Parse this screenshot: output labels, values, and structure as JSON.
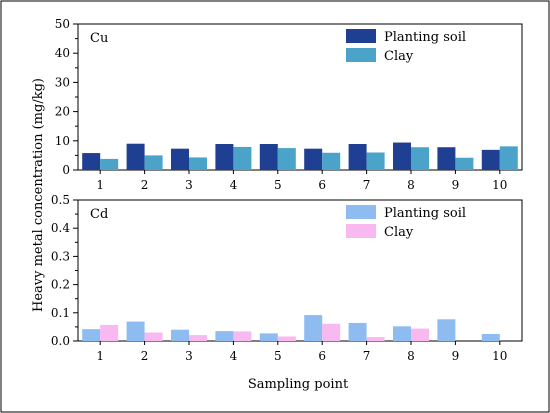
{
  "chart_data": [
    {
      "type": "bar",
      "panel_label": "Cu",
      "categories": [
        "1",
        "2",
        "3",
        "4",
        "5",
        "6",
        "7",
        "8",
        "9",
        "10"
      ],
      "series": [
        {
          "name": "Planting soil",
          "color": "#1f3f93",
          "values": [
            5.8,
            9.0,
            7.3,
            8.9,
            8.9,
            7.3,
            8.9,
            9.4,
            7.8,
            6.9
          ]
        },
        {
          "name": "Clay",
          "color": "#4ba3c9",
          "values": [
            3.8,
            5.0,
            4.3,
            7.9,
            7.5,
            5.9,
            6.0,
            7.8,
            4.2,
            8.1
          ]
        }
      ],
      "ylim": [
        0,
        50
      ],
      "yticks": [
        "0",
        "10",
        "20",
        "30",
        "40",
        "50"
      ],
      "legend_position": "top-right"
    },
    {
      "type": "bar",
      "panel_label": "Cd",
      "categories": [
        "1",
        "2",
        "3",
        "4",
        "5",
        "6",
        "7",
        "8",
        "9",
        "10"
      ],
      "series": [
        {
          "name": "Planting soil",
          "color": "#8fbcf0",
          "values": [
            0.042,
            0.069,
            0.04,
            0.035,
            0.027,
            0.092,
            0.064,
            0.052,
            0.077,
            0.025
          ]
        },
        {
          "name": "Clay",
          "color": "#f8b8f0",
          "values": [
            0.057,
            0.03,
            0.021,
            0.034,
            0.016,
            0.061,
            0.014,
            0.044,
            0.0,
            0.0
          ]
        }
      ],
      "ylim": [
        0,
        0.5
      ],
      "yticks": [
        "0.0",
        "0.1",
        "0.2",
        "0.3",
        "0.4",
        "0.5"
      ],
      "legend_position": "top-right"
    }
  ],
  "ylabel": "Heavy metal concentration (mg/kg)",
  "xlabel": "Sampling point"
}
